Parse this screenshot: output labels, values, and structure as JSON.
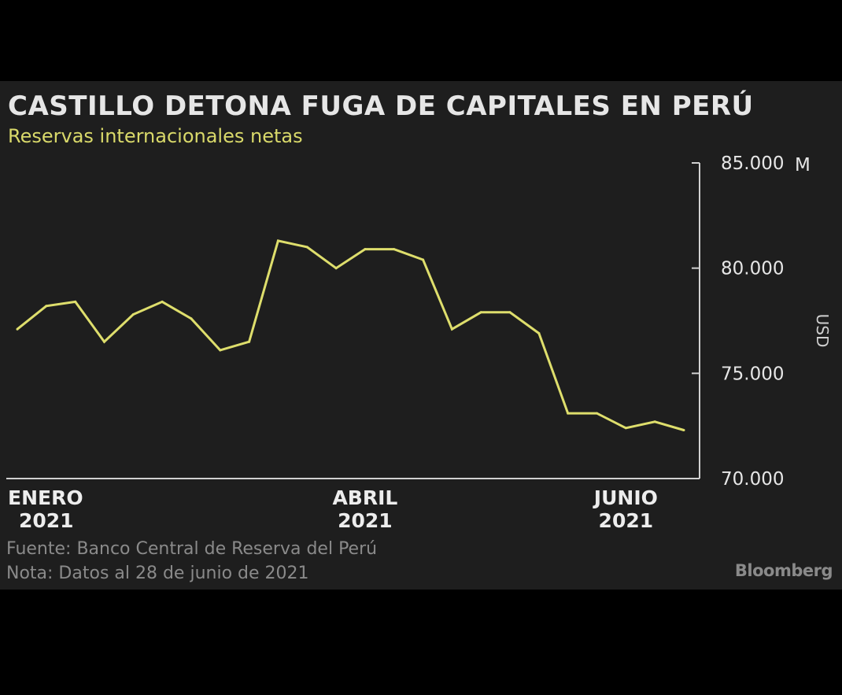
{
  "chart_data": {
    "type": "line",
    "title": "CASTILLO DETONA FUGA DE CAPITALES EN PERÚ",
    "subtitle": "Reservas internacionales netas",
    "ylabel": "USD",
    "y_unit_suffix": "M",
    "ylim": [
      70000,
      85000
    ],
    "y_ticks": [
      "85.000",
      "80.000",
      "75.000",
      "70.000"
    ],
    "y_tick_values": [
      85000,
      80000,
      75000,
      70000
    ],
    "x_ticks": [
      {
        "line1": "ENERO",
        "line2": "2021",
        "index": 0
      },
      {
        "line1": "ABRIL",
        "line2": "2021",
        "index": 12
      },
      {
        "line1": "JUNIO",
        "line2": "2021",
        "index": 21
      }
    ],
    "series": [
      {
        "color": "#dede6c",
        "values": [
          77100,
          78200,
          78400,
          76500,
          77800,
          78400,
          77600,
          76100,
          76500,
          81300,
          81000,
          80000,
          80900,
          80900,
          80400,
          77100,
          77900,
          77900,
          76900,
          73100,
          73100,
          72400,
          72700,
          72300
        ]
      }
    ],
    "grid": false,
    "legend": "none"
  },
  "footer": {
    "source": "Fuente: Banco Central de Reserva del Perú",
    "note": "Nota: Datos al 28 de junio de 2021",
    "brand": "Bloomberg"
  },
  "colors": {
    "background": "#1e1e1e",
    "line": "#dede6c",
    "title": "#e6e6e6",
    "subtitle": "#d9d96a",
    "footer": "#8a8a8a"
  }
}
